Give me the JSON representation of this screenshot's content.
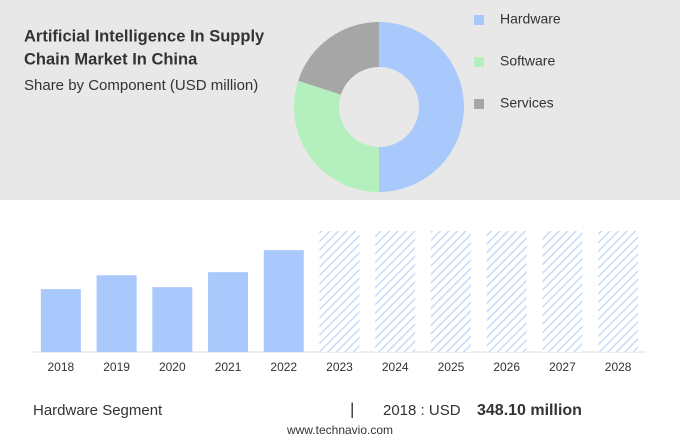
{
  "chart_data": [
    {
      "type": "pie",
      "title_lines": [
        "Artificial Intelligence In Supply",
        "Chain Market In China"
      ],
      "subtitle": "Share by Component (USD million)",
      "categories": [
        "Hardware",
        "Software",
        "Services"
      ],
      "values": [
        50,
        30,
        20
      ],
      "colors": [
        "#a9c8fb",
        "#b3f0bd",
        "#a6a6a6"
      ],
      "donut": true
    },
    {
      "type": "bar",
      "categories": [
        "2018",
        "2019",
        "2020",
        "2021",
        "2022",
        "2023",
        "2024",
        "2025",
        "2026",
        "2027",
        "2028"
      ],
      "values": [
        348.1,
        425,
        359,
        442,
        564,
        null,
        null,
        null,
        null,
        null,
        null
      ],
      "color": "#a9c8fb",
      "forecast_color": "#c9d9f8",
      "ylim": [
        0,
        670
      ]
    }
  ],
  "footer": {
    "segment": "Hardware Segment",
    "separator": "|",
    "year_label": "2018 : USD",
    "value_label": "348.10 million",
    "source": "www.technavio.com"
  }
}
